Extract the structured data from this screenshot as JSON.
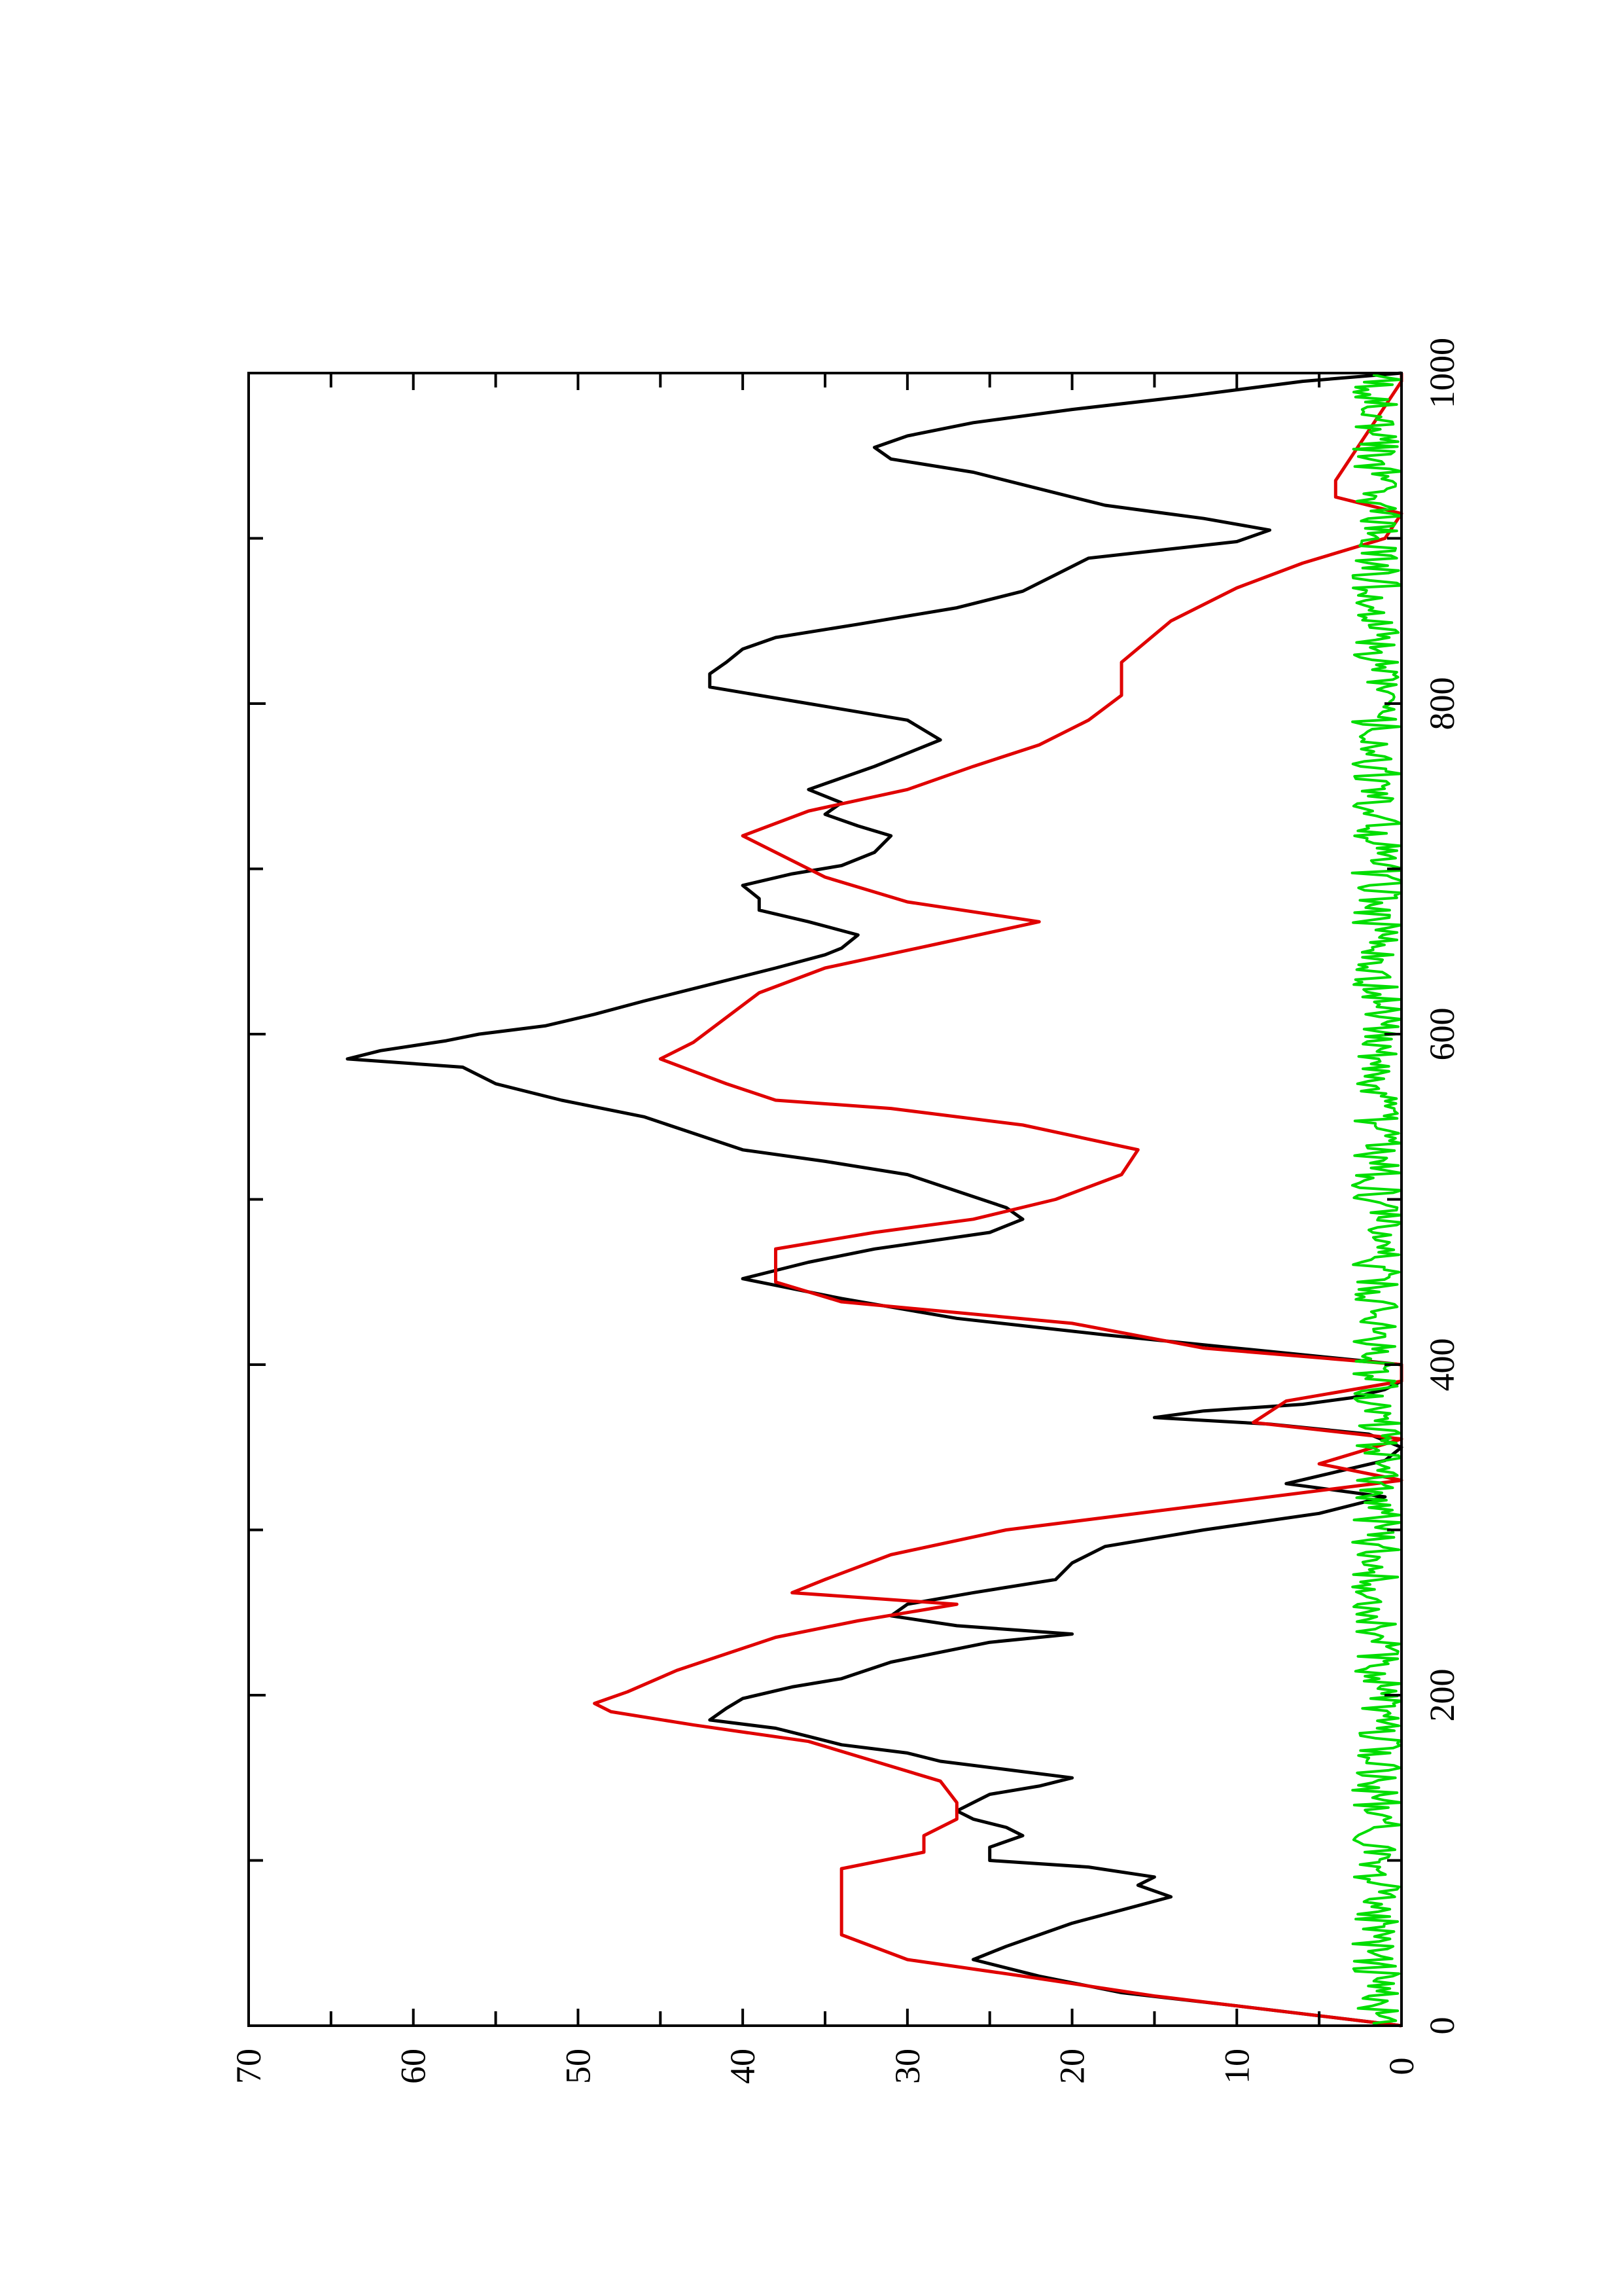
{
  "chart_data": {
    "type": "line",
    "orientation": "rotated-90-ccw",
    "title": "",
    "xlabel": "",
    "ylabel": "",
    "xlim": [
      0,
      1000
    ],
    "ylim": [
      0,
      70
    ],
    "x_ticks": [
      "0",
      "200",
      "400",
      "600",
      "800",
      "1000"
    ],
    "y_ticks": [
      "0",
      "10",
      "20",
      "30",
      "40",
      "50",
      "60",
      "70"
    ],
    "grid": false,
    "legend": "none",
    "series": [
      {
        "color": "#000000",
        "style": "smooth",
        "x": [
          0,
          12,
          20,
          30,
          40,
          48,
          55,
          62,
          70,
          78,
          85,
          90,
          96,
          100,
          108,
          115,
          120,
          125,
          130,
          135,
          140,
          145,
          150,
          155,
          160,
          165,
          170,
          175,
          180,
          185,
          192,
          198,
          205,
          210,
          220,
          232,
          237,
          242,
          248,
          255,
          262,
          270,
          280,
          290,
          300,
          310,
          320,
          328,
          335,
          342,
          350,
          358,
          364,
          368,
          372,
          376,
          380,
          385,
          390,
          400,
          410,
          418,
          428,
          440,
          448,
          452,
          462,
          470,
          480,
          488,
          495,
          505,
          515,
          523,
          530,
          540,
          550,
          560,
          570,
          580,
          585,
          590,
          596,
          600,
          605,
          612,
          620,
          630,
          640,
          648,
          652,
          660,
          668,
          675,
          682,
          690,
          697,
          702,
          710,
          720,
          726,
          733,
          740,
          748,
          755,
          762,
          770,
          778,
          790,
          800,
          810,
          818,
          825,
          833,
          840,
          848,
          858,
          868,
          878,
          888,
          898,
          905,
          912,
          920,
          930,
          940,
          948,
          955,
          962,
          970,
          978,
          986,
          995,
          1000
        ],
        "y": [
          0,
          10,
          17,
          22,
          26,
          24,
          22,
          20,
          17,
          14,
          16,
          15,
          19,
          25,
          25,
          23,
          24,
          26,
          27,
          26,
          25,
          22,
          20,
          24,
          28,
          30,
          34,
          36,
          38,
          42,
          41,
          40,
          37,
          34,
          31,
          25,
          20,
          27,
          31,
          30,
          26,
          21,
          20,
          18,
          12,
          5,
          1,
          7,
          4,
          1,
          0,
          2,
          8,
          15,
          12,
          6,
          3,
          1,
          0,
          0,
          10,
          18,
          27,
          34,
          38,
          40,
          36,
          32,
          25,
          23,
          24,
          27,
          30,
          35,
          40,
          43,
          46,
          51,
          55,
          57,
          64,
          62,
          58,
          56,
          52,
          49,
          46,
          42,
          38,
          35,
          34,
          33,
          36,
          39,
          39,
          40,
          37,
          34,
          32,
          31,
          33,
          35,
          34,
          36,
          34,
          32,
          30,
          28,
          30,
          36,
          42,
          42,
          41,
          40,
          38,
          33,
          27,
          23,
          21,
          19,
          10,
          8,
          12,
          18,
          22,
          26,
          31,
          32,
          30,
          26,
          20,
          13,
          6,
          0
        ]
      },
      {
        "color": "#e00000",
        "style": "step",
        "x": [
          0,
          18,
          30,
          40,
          55,
          75,
          85,
          95,
          105,
          115,
          125,
          135,
          148,
          160,
          172,
          182,
          190,
          195,
          202,
          215,
          225,
          235,
          245,
          255,
          262,
          270,
          285,
          300,
          315,
          325,
          330,
          340,
          355,
          365,
          378,
          390,
          400,
          410,
          425,
          438,
          450,
          470,
          480,
          488,
          500,
          515,
          530,
          545,
          555,
          560,
          570,
          585,
          595,
          610,
          625,
          640,
          655,
          668,
          680,
          695,
          710,
          720,
          735,
          748,
          762,
          775,
          790,
          805,
          825,
          850,
          870,
          885,
          900,
          915,
          925,
          935,
          950,
          965,
          980,
          995,
          1000
        ],
        "y": [
          0,
          15,
          23,
          30,
          34,
          34,
          34,
          34,
          29,
          29,
          27,
          27,
          28,
          32,
          36,
          43,
          48,
          49,
          47,
          44,
          41,
          38,
          33,
          27,
          37,
          35,
          31,
          24,
          12,
          4,
          0,
          5,
          0,
          9,
          7,
          0,
          0,
          12,
          20,
          34,
          38,
          38,
          32,
          26,
          21,
          17,
          16,
          23,
          31,
          38,
          41,
          45,
          43,
          41,
          39,
          35,
          28,
          22,
          30,
          35,
          38,
          40,
          36,
          30,
          26,
          22,
          19,
          17,
          17,
          14,
          10,
          6,
          1,
          0,
          4,
          4,
          3,
          2,
          1,
          0,
          0
        ]
      },
      {
        "color": "#00dd00",
        "style": "noise",
        "x": [
          0,
          1000
        ],
        "y": [
          0,
          3
        ]
      }
    ]
  }
}
